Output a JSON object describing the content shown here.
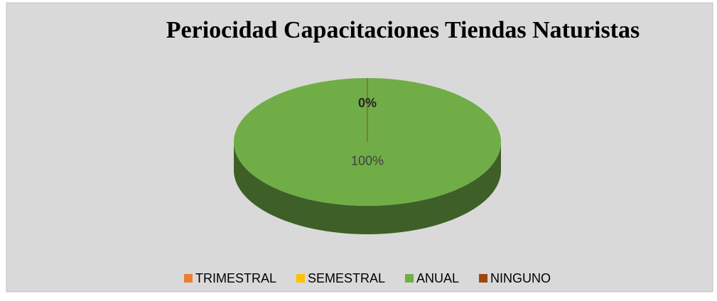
{
  "chart_data": {
    "type": "pie",
    "title": "Periocidad Capacitaciones Tiendas Naturistas",
    "categories": [
      "TRIMESTRAL",
      "SEMESTRAL",
      "ANUAL",
      "NINGUNO"
    ],
    "values": [
      0,
      0,
      100,
      0
    ],
    "value_labels": [
      "0%",
      null,
      "100%",
      null
    ],
    "colors": [
      "#ed7d31",
      "#ffc000",
      "#70ad47",
      "#9e480e"
    ],
    "legend": "bottom"
  }
}
